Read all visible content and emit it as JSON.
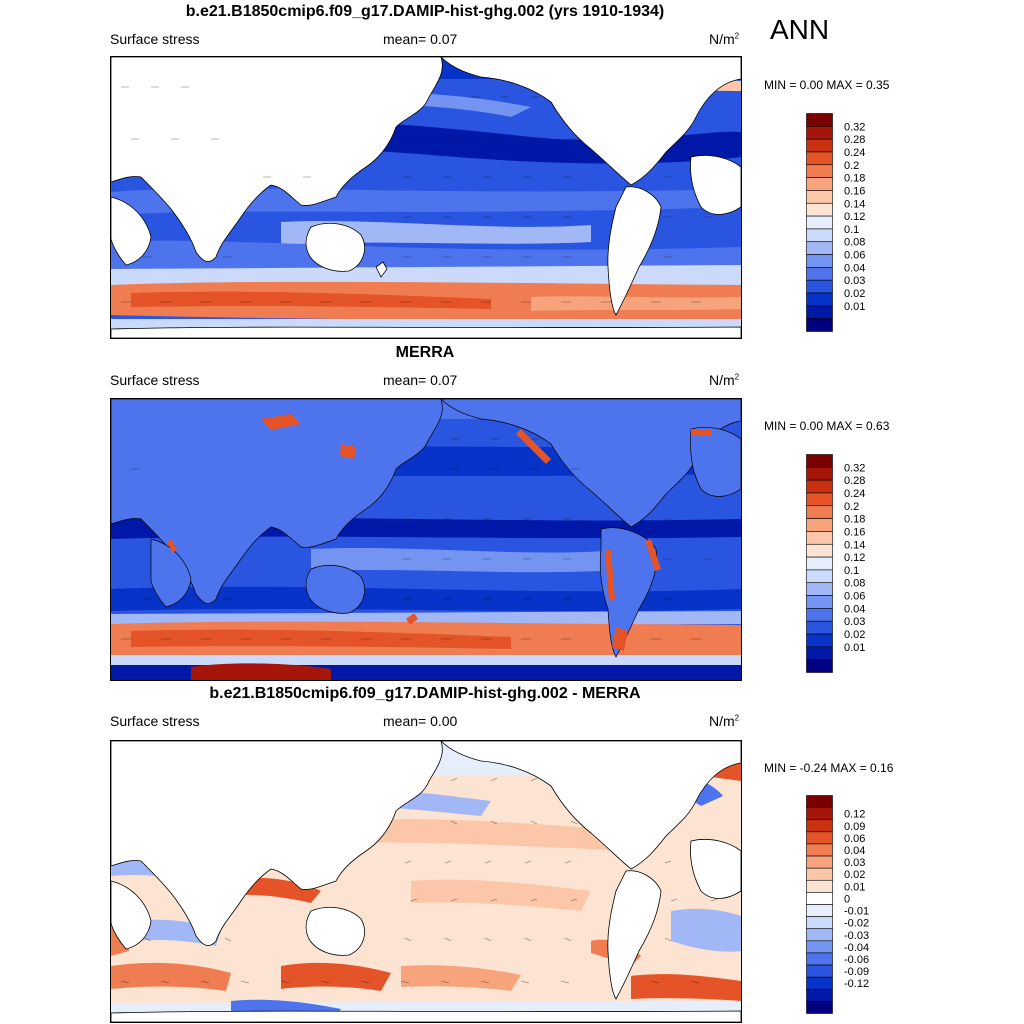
{
  "season": "ANN",
  "colors": {
    "model_levels": [
      "#000080",
      "#0018a8",
      "#0833c8",
      "#2a55e0",
      "#4d74ec",
      "#7494f2",
      "#a2b8f6",
      "#cbd9fa",
      "#e6eefc",
      "#fde3d2",
      "#fcc6a8",
      "#f7a47c",
      "#f07d52",
      "#e45428",
      "#c8300f",
      "#a5150a",
      "#7b0000"
    ],
    "diff_levels": [
      "#000080",
      "#0018a8",
      "#0833c8",
      "#2a55e0",
      "#4d74ec",
      "#7494f2",
      "#a2b8f6",
      "#cbd9fa",
      "#e6eefc",
      "#ffffff",
      "#fde3d2",
      "#fcc6a8",
      "#f7a47c",
      "#f07d52",
      "#e45428",
      "#c8300f",
      "#a5150a",
      "#7b0000"
    ]
  },
  "panels": [
    {
      "title": "b.e21.B1850cmip6.f09_g17.DAMIP-hist-ghg.002 (yrs 1910-1934)",
      "variable": "Surface stress",
      "mean": "mean=   0.07",
      "units": "N/m",
      "units_sup": "2",
      "minmax": "MIN =   0.00 MAX =   0.35",
      "colorbar": [
        "0.32",
        "0.28",
        "0.24",
        "0.2",
        "0.18",
        "0.16",
        "0.14",
        "0.12",
        "0.1",
        "0.08",
        "0.06",
        "0.04",
        "0.03",
        "0.02",
        "0.01"
      ]
    },
    {
      "title": "MERRA",
      "variable": "Surface stress",
      "mean": "mean=   0.07",
      "units": "N/m",
      "units_sup": "2",
      "minmax": "MIN =   0.00 MAX =   0.63",
      "colorbar": [
        "0.32",
        "0.28",
        "0.24",
        "0.2",
        "0.18",
        "0.16",
        "0.14",
        "0.12",
        "0.1",
        "0.08",
        "0.06",
        "0.04",
        "0.03",
        "0.02",
        "0.01"
      ]
    },
    {
      "title": "b.e21.B1850cmip6.f09_g17.DAMIP-hist-ghg.002 - MERRA",
      "variable": "Surface stress",
      "mean": "mean=   0.00",
      "units": "N/m",
      "units_sup": "2",
      "minmax": "MIN =  -0.24 MAX =   0.16",
      "colorbar": [
        "0.12",
        "0.09",
        "0.06",
        "0.04",
        "0.03",
        "0.02",
        "0.01",
        "0",
        "-0.01",
        "-0.02",
        "-0.03",
        "-0.04",
        "-0.06",
        "-0.09",
        "-0.12"
      ]
    }
  ]
}
